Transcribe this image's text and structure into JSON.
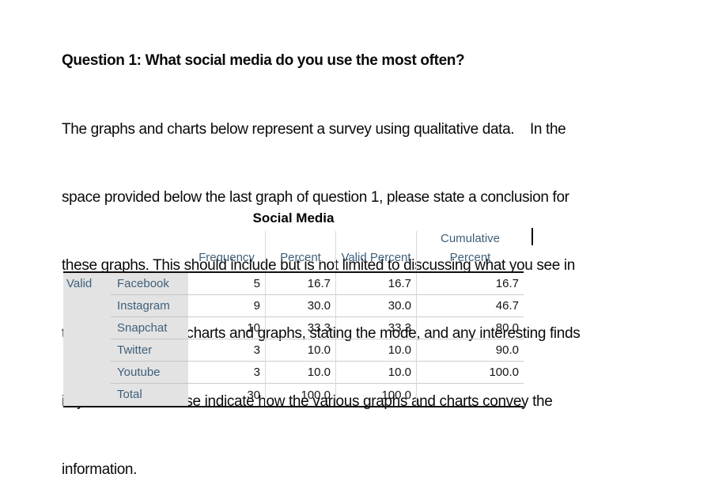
{
  "question": {
    "title_line": "Question 1: What social media do you use the most often?",
    "body_lines": [
      "The graphs and charts below represent a survey using qualitative data.    In the",
      "space provided below the last graph of question 1, please state a conclusion for",
      "these graphs. This should include but is not limited to discussing what you see in",
      "the qualitative data charts and graphs, stating the mode, and any interesting finds",
      "in your data.    Please indicate how the various graphs and charts convey the",
      "information."
    ]
  },
  "table": {
    "title": "Social Media",
    "stub_header": "Valid",
    "columns": [
      "Frequency",
      "Percent",
      "Valid Percent",
      "Cumulative Percent"
    ],
    "rows": [
      {
        "label": "Facebook",
        "frequency": "5",
        "percent": "16.7",
        "valid_percent": "16.7",
        "cumulative_percent": "16.7"
      },
      {
        "label": "Instagram",
        "frequency": "9",
        "percent": "30.0",
        "valid_percent": "30.0",
        "cumulative_percent": "46.7"
      },
      {
        "label": "Snapchat",
        "frequency": "10",
        "percent": "33.3",
        "valid_percent": "33.3",
        "cumulative_percent": "80.0"
      },
      {
        "label": "Twitter",
        "frequency": "3",
        "percent": "10.0",
        "valid_percent": "10.0",
        "cumulative_percent": "90.0"
      },
      {
        "label": "Youtube",
        "frequency": "3",
        "percent": "10.0",
        "valid_percent": "10.0",
        "cumulative_percent": "100.0"
      },
      {
        "label": "Total",
        "frequency": "30",
        "percent": "100.0",
        "valid_percent": "100.0",
        "cumulative_percent": ""
      }
    ]
  },
  "colors": {
    "label_slate_blue": "#3E5F7A",
    "stub_gray": "#E3E3E3",
    "rule_black": "#111111",
    "column_separator": "#D9D9D9",
    "row_separator": "#C6C6C6"
  }
}
